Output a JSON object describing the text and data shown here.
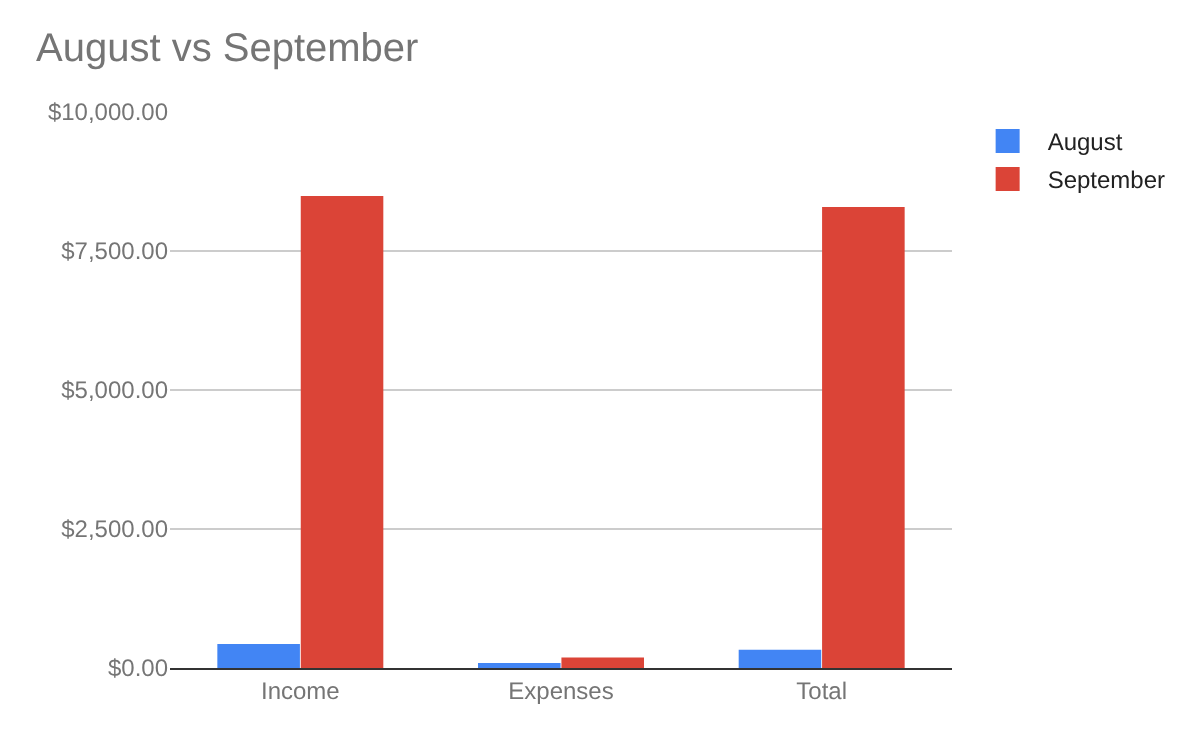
{
  "chart_data": {
    "type": "bar",
    "title": "August vs September",
    "categories": [
      "Income",
      "Expenses",
      "Total"
    ],
    "series": [
      {
        "name": "August",
        "color": "#4285f4",
        "values": [
          430,
          90,
          330
        ]
      },
      {
        "name": "September",
        "color": "#db4437",
        "values": [
          8490,
          190,
          8290
        ]
      }
    ],
    "ylim": [
      0,
      10000
    ],
    "yticks": [
      {
        "value": 0,
        "label": "$0.00"
      },
      {
        "value": 2500,
        "label": "$2,500.00"
      },
      {
        "value": 5000,
        "label": "$5,000.00"
      },
      {
        "value": 7500,
        "label": "$7,500.00"
      },
      {
        "value": 10000,
        "label": "$10,000.00"
      }
    ],
    "grid": "y",
    "legend": "top right"
  }
}
